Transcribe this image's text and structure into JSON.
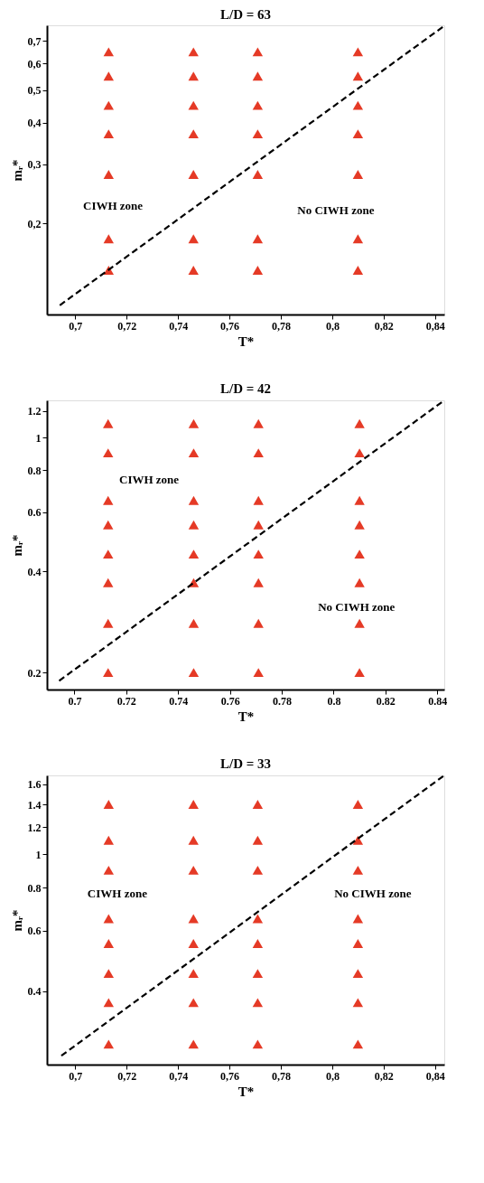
{
  "chart_data": [
    {
      "type": "scatter",
      "title": "L/D = 63",
      "xlabel": "T*",
      "ylabel": "mᵣ*",
      "log": "y",
      "grid": false,
      "marker": "triangle",
      "xlim": [
        0.689,
        0.8436
      ],
      "ylim": [
        0.107,
        0.78
      ],
      "xticks": [
        {
          "value": 0.7,
          "label": "0,7"
        },
        {
          "value": 0.72,
          "label": "0,72"
        },
        {
          "value": 0.74,
          "label": "0,74"
        },
        {
          "value": 0.76,
          "label": "0,76"
        },
        {
          "value": 0.78,
          "label": "0,78"
        },
        {
          "value": 0.8,
          "label": "0,8"
        },
        {
          "value": 0.82,
          "label": "0,82"
        },
        {
          "value": 0.84,
          "label": "0,84"
        }
      ],
      "yticks": [
        {
          "value": 0.2,
          "label": "0,2"
        },
        {
          "value": 0.3,
          "label": "0,3"
        },
        {
          "value": 0.4,
          "label": "0,4"
        },
        {
          "value": 0.5,
          "label": "0,5"
        },
        {
          "value": 0.6,
          "label": "0,6"
        },
        {
          "value": 0.7,
          "label": "0,7"
        }
      ],
      "series": [
        {
          "type": "scatter",
          "color": "#e53a26",
          "x": [
            0.713,
            0.713,
            0.713,
            0.713,
            0.713,
            0.713,
            0.713,
            0.746,
            0.746,
            0.746,
            0.746,
            0.746,
            0.746,
            0.746,
            0.771,
            0.771,
            0.771,
            0.771,
            0.771,
            0.771,
            0.771,
            0.81,
            0.81,
            0.81,
            0.81,
            0.81,
            0.81,
            0.81
          ],
          "values": [
            0.65,
            0.55,
            0.45,
            0.37,
            0.28,
            0.18,
            0.145,
            0.65,
            0.55,
            0.45,
            0.37,
            0.28,
            0.18,
            0.145,
            0.65,
            0.55,
            0.45,
            0.37,
            0.28,
            0.18,
            0.145,
            0.65,
            0.55,
            0.45,
            0.37,
            0.28,
            0.18,
            0.145
          ]
        },
        {
          "type": "line",
          "color": "#000000",
          "line_style": "dashed",
          "marker": "none",
          "x": [
            0.694,
            0.8436
          ],
          "values": [
            0.114,
            0.777
          ]
        }
      ],
      "annotations": [
        "CIWH zone",
        "No CIWH zone"
      ]
    },
    {
      "type": "scatter",
      "title": "L/D = 42",
      "xlabel": "T*",
      "ylabel": "mᵣ*",
      "log": "y",
      "grid": false,
      "marker": "triangle",
      "xlim": [
        0.6894,
        0.8427
      ],
      "ylim": [
        0.178,
        1.29
      ],
      "xticks": [
        0.7,
        0.72,
        0.74,
        0.76,
        0.78,
        0.8,
        0.82,
        0.84
      ],
      "yticks": [
        0.2,
        0.4,
        0.6,
        0.8,
        1,
        1.2
      ],
      "series": [
        {
          "type": "scatter",
          "color": "#e53a26",
          "x": [
            0.713,
            0.713,
            0.713,
            0.713,
            0.713,
            0.713,
            0.713,
            0.713,
            0.746,
            0.746,
            0.746,
            0.746,
            0.746,
            0.746,
            0.746,
            0.746,
            0.771,
            0.771,
            0.771,
            0.771,
            0.771,
            0.771,
            0.771,
            0.771,
            0.81,
            0.81,
            0.81,
            0.81,
            0.81,
            0.81,
            0.81,
            0.81
          ],
          "values": [
            1.1,
            0.9,
            0.65,
            0.55,
            0.45,
            0.37,
            0.28,
            0.2,
            1.1,
            0.9,
            0.65,
            0.55,
            0.45,
            0.37,
            0.28,
            0.2,
            1.1,
            0.9,
            0.65,
            0.55,
            0.45,
            0.37,
            0.28,
            0.2,
            1.1,
            0.9,
            0.65,
            0.55,
            0.45,
            0.37,
            0.28,
            0.2
          ]
        },
        {
          "type": "line",
          "color": "#000000",
          "line_style": "dashed",
          "marker": "none",
          "x": [
            0.6941,
            0.8427
          ],
          "values": [
            0.189,
            1.29
          ]
        }
      ],
      "annotations": [
        "CIWH zone",
        "No CIWH zone"
      ]
    },
    {
      "type": "scatter",
      "title": "L/D = 33",
      "xlabel": "T*",
      "ylabel": "mᵣ*",
      "log": "y",
      "grid": false,
      "marker": "triangle",
      "xlim": [
        0.689,
        0.8436
      ],
      "ylim": [
        0.244,
        1.7
      ],
      "xticks": [
        {
          "value": 0.7,
          "label": "0,7"
        },
        {
          "value": 0.72,
          "label": "0,72"
        },
        {
          "value": 0.74,
          "label": "0,74"
        },
        {
          "value": 0.76,
          "label": "0,76"
        },
        {
          "value": 0.78,
          "label": "0,78"
        },
        {
          "value": 0.8,
          "label": "0,8"
        },
        {
          "value": 0.82,
          "label": "0,82"
        },
        {
          "value": 0.84,
          "label": "0,84"
        }
      ],
      "yticks": [
        0.4,
        0.6,
        0.8,
        1,
        1.2,
        1.4,
        1.6
      ],
      "series": [
        {
          "type": "scatter",
          "color": "#e53a26",
          "x": [
            0.713,
            0.713,
            0.713,
            0.713,
            0.713,
            0.713,
            0.713,
            0.713,
            0.746,
            0.746,
            0.746,
            0.746,
            0.746,
            0.746,
            0.746,
            0.746,
            0.771,
            0.771,
            0.771,
            0.771,
            0.771,
            0.771,
            0.771,
            0.771,
            0.81,
            0.81,
            0.81,
            0.81,
            0.81,
            0.81,
            0.81,
            0.81
          ],
          "values": [
            1.4,
            1.1,
            0.9,
            0.65,
            0.55,
            0.45,
            0.37,
            0.28,
            1.4,
            1.1,
            0.9,
            0.65,
            0.55,
            0.45,
            0.37,
            0.28,
            1.4,
            1.1,
            0.9,
            0.65,
            0.55,
            0.45,
            0.37,
            0.28,
            1.4,
            1.1,
            0.9,
            0.65,
            0.55,
            0.45,
            0.37,
            0.28
          ]
        },
        {
          "type": "line",
          "color": "#000000",
          "line_style": "dashed",
          "marker": "none",
          "x": [
            0.6946,
            0.8436
          ],
          "values": [
            0.259,
            1.7
          ]
        }
      ],
      "annotations": [
        "CIWH zone",
        "No CIWH zone"
      ]
    }
  ]
}
